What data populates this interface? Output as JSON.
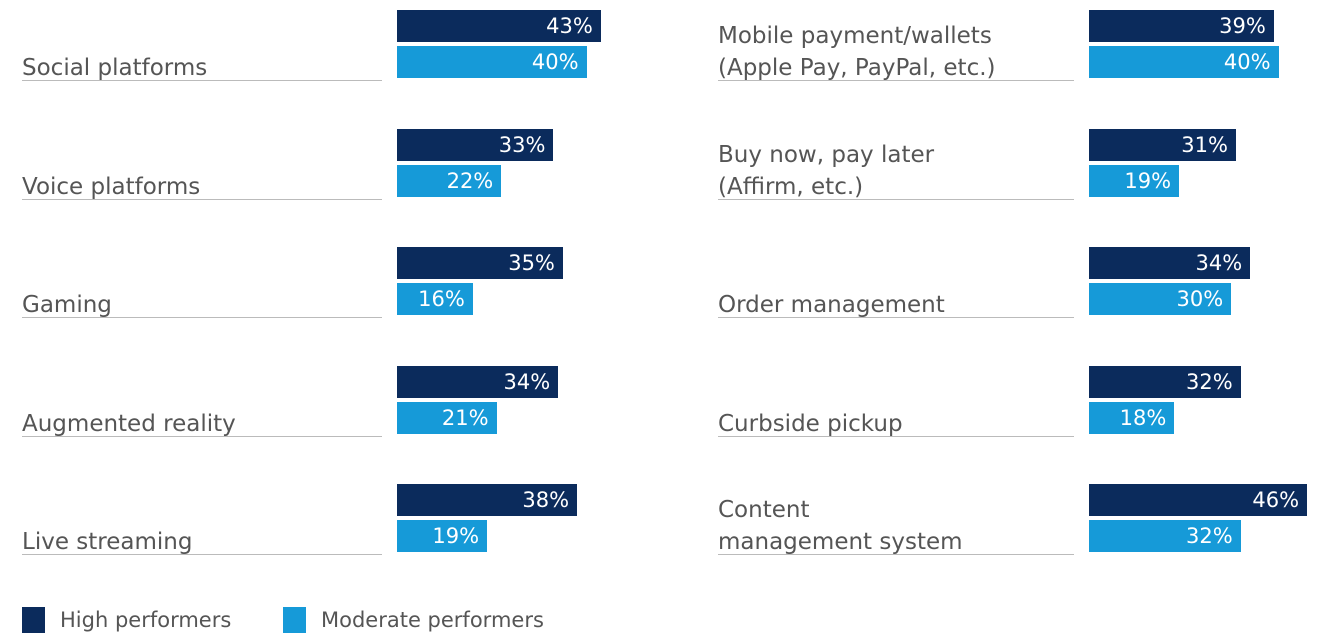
{
  "chart_data": {
    "type": "bar",
    "orientation": "horizontal",
    "categories": [
      "Social platforms",
      "Voice platforms",
      "Gaming",
      "Augmented reality",
      "Live streaming",
      "Mobile payment/wallets\n(Apple Pay, PayPal, etc.)",
      "Buy now, pay later\n(Affirm, etc.)",
      "Order management",
      "Curbside pickup",
      "Content\nmanagement system"
    ],
    "series": [
      {
        "name": "High performers",
        "color": "#0b2b5c",
        "values": [
          43,
          33,
          35,
          34,
          38,
          39,
          31,
          34,
          32,
          46
        ],
        "value_labels": [
          "43%",
          "33%",
          "35%",
          "34%",
          "38%",
          "39%",
          "31%",
          "34%",
          "32%",
          "46%"
        ]
      },
      {
        "name": "Moderate performers",
        "color": "#169ad8",
        "values": [
          40,
          22,
          16,
          21,
          19,
          40,
          19,
          30,
          18,
          32
        ],
        "value_labels": [
          "40%",
          "22%",
          "16%",
          "21%",
          "19%",
          "40%",
          "19%",
          "30%",
          "18%",
          "32%"
        ]
      }
    ],
    "legend": "bottom-left"
  }
}
